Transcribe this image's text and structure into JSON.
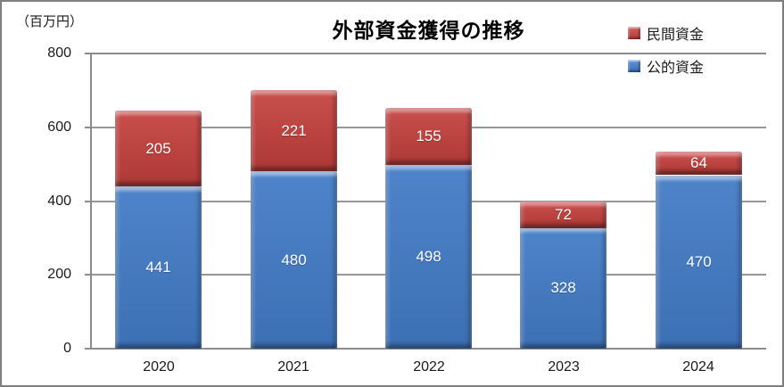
{
  "title": "外部資金獲得の推移",
  "axis_unit_label": "（百万円）",
  "legend": [
    {
      "label": "民間資金",
      "swatch_color": "#be4744"
    },
    {
      "label": "公的資金",
      "swatch_color": "#4277c0"
    }
  ],
  "colors": {
    "series_blue": "#4277c0",
    "series_red": "#be4744",
    "gridline": "#969696",
    "axis": "#8c8c8c",
    "outer_border": "#7f7f7f",
    "value_label": "#ffffff",
    "text": "#1a1a1a"
  },
  "chart_data": {
    "type": "bar",
    "stacked": true,
    "title": "外部資金獲得の推移",
    "ylabel": "（百万円）",
    "categories": [
      "2020",
      "2021",
      "2022",
      "2023",
      "2024"
    ],
    "series": [
      {
        "name": "公的資金",
        "color": "#4277c0",
        "values": [
          441,
          480,
          498,
          328,
          470
        ]
      },
      {
        "name": "民間資金",
        "color": "#be4744",
        "values": [
          205,
          221,
          155,
          72,
          64
        ]
      }
    ],
    "totals": [
      646,
      701,
      653,
      400,
      534
    ],
    "ylim": [
      0,
      800
    ],
    "yticks": [
      0,
      200,
      400,
      600,
      800
    ],
    "grid": true,
    "legend_position": "top-right",
    "data_labels": "inside-center-white"
  }
}
